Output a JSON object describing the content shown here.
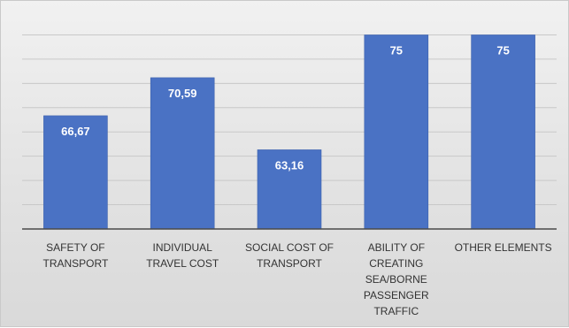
{
  "chart_data": {
    "type": "bar",
    "categories": [
      [
        "SAFETY OF",
        "TRANSPORT"
      ],
      [
        "INDIVIDUAL",
        "TRAVEL COST"
      ],
      [
        "SOCIAL COST OF",
        "TRANSPORT"
      ],
      [
        "ABILITY OF",
        "CREATING",
        "SEA/BORNE",
        "PASSENGER",
        "TRAFFIC"
      ],
      [
        "OTHER ELEMENTS"
      ]
    ],
    "values": [
      66.67,
      70.59,
      63.16,
      75,
      75
    ],
    "data_labels": [
      "66,67",
      "70,59",
      "63,16",
      "75",
      "75"
    ],
    "ylim": [
      55,
      75.5
    ],
    "grid": true,
    "colors": {
      "bar": "#4a72c4",
      "label": "#ffffff"
    }
  }
}
